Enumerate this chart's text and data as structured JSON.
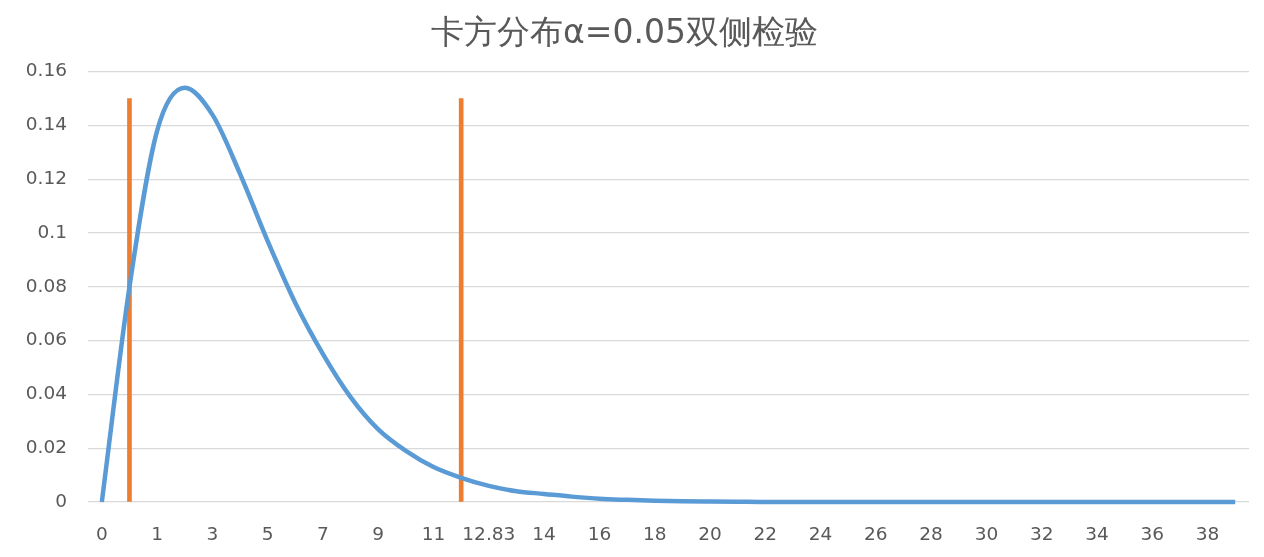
{
  "chart_data": {
    "type": "line",
    "title": "卡方分布α=0.05双侧检验",
    "categories": [
      "0",
      null,
      "1",
      null,
      "3",
      null,
      "5",
      null,
      "7",
      null,
      "9",
      null,
      "11",
      null,
      "12.83",
      null,
      "14",
      null,
      "16",
      null,
      "18",
      null,
      "20",
      null,
      "22",
      null,
      "24",
      null,
      "26",
      null,
      "28",
      null,
      "30",
      null,
      "32",
      null,
      "34",
      null,
      "36",
      null,
      "38",
      null
    ],
    "series": [
      {
        "color": "#5b9bd5",
        "values": [
          0,
          0.08,
          0.138,
          0.154,
          0.144,
          0.122,
          0.097,
          0.074,
          0.055,
          0.039,
          0.027,
          0.019,
          0.013,
          0.009,
          0.006,
          0.004,
          0.003,
          0.002,
          0.0012,
          0.0008,
          0.0005,
          0.0003,
          0.0002,
          0.0001,
          0,
          0,
          0,
          0,
          0,
          0,
          0,
          0,
          0,
          0,
          0,
          0,
          0,
          0,
          0,
          0,
          0,
          0
        ]
      },
      {
        "type": "bar",
        "color": "#ed7d31",
        "values": [
          null,
          0.15,
          null,
          null,
          null,
          null,
          null,
          null,
          null,
          null,
          null,
          null,
          null,
          0.15,
          null,
          null,
          null,
          null,
          null,
          null,
          null,
          null,
          null,
          null,
          null,
          null,
          null,
          null,
          null,
          null,
          null,
          null,
          null,
          null,
          null,
          null,
          null,
          null,
          null,
          null,
          null,
          null
        ]
      }
    ],
    "ylim": [
      0,
      0.16
    ],
    "yticks": [
      0,
      0.02,
      0.04,
      0.06,
      0.08,
      0.1,
      0.12,
      0.14,
      0.16
    ],
    "grid": "y",
    "marker": "none",
    "line_style": "solid"
  }
}
